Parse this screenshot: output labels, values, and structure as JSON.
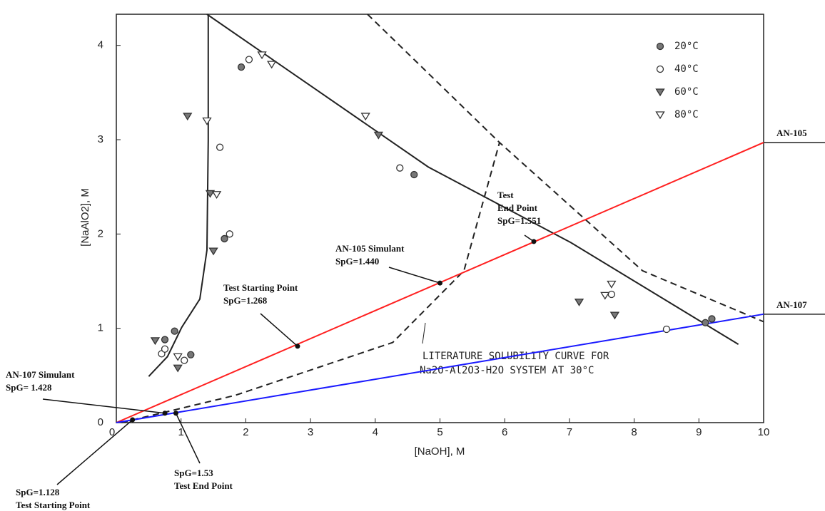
{
  "chart_data": {
    "type": "scatter",
    "x_label": "[NaOH], M",
    "y_label": "[NaAlO2], M",
    "xlim": [
      0,
      10
    ],
    "ylim": [
      0,
      4.33
    ],
    "xticks": [
      0,
      1,
      2,
      3,
      4,
      5,
      6,
      7,
      8,
      9,
      10
    ],
    "yticks": [
      0,
      1,
      2,
      3,
      4
    ],
    "legend": "upper right",
    "series": [
      {
        "name": "20°C",
        "marker": "circle",
        "filled": true,
        "color": "#777",
        "x": [
          1.93,
          1.67,
          0.9,
          0.75,
          1.15,
          4.6,
          9.1,
          9.2
        ],
        "y": [
          3.77,
          1.95,
          0.97,
          0.88,
          0.72,
          2.63,
          1.06,
          1.1
        ]
      },
      {
        "name": "40°C",
        "marker": "circle",
        "filled": false,
        "color": "#333",
        "x": [
          2.05,
          1.6,
          1.75,
          0.7,
          0.75,
          1.05,
          4.38,
          7.65,
          8.5
        ],
        "y": [
          3.85,
          2.92,
          2.0,
          0.73,
          0.78,
          0.66,
          2.7,
          1.36,
          0.99
        ]
      },
      {
        "name": "60°C",
        "marker": "triangle",
        "filled": true,
        "color": "#777",
        "x": [
          1.1,
          1.45,
          1.5,
          0.6,
          0.95,
          4.05,
          7.15,
          7.7
        ],
        "y": [
          3.25,
          2.43,
          1.82,
          0.87,
          0.58,
          3.05,
          1.28,
          1.14
        ]
      },
      {
        "name": "80°C",
        "marker": "triangle",
        "filled": false,
        "color": "#333",
        "x": [
          2.25,
          2.4,
          1.4,
          1.55,
          0.95,
          3.85,
          7.55,
          7.65
        ],
        "y": [
          3.9,
          3.8,
          3.2,
          2.42,
          0.7,
          3.25,
          1.35,
          1.47
        ]
      }
    ],
    "lines": [
      {
        "name": "AN-105",
        "color": "#ff2020",
        "x": [
          0,
          10
        ],
        "y": [
          0,
          2.97
        ]
      },
      {
        "name": "AN-107",
        "color": "#1a1aff",
        "x": [
          0,
          10
        ],
        "y": [
          0,
          1.15
        ]
      }
    ],
    "curves": [
      {
        "dashed": false,
        "x": [
          0.5,
          0.79,
          1.01,
          1.29,
          1.4,
          1.42,
          1.42
        ],
        "y": [
          0.49,
          0.7,
          1.01,
          1.31,
          1.83,
          2.99,
          4.33
        ]
      },
      {
        "dashed": false,
        "x": [
          1.4,
          4.82,
          7.02,
          9.61
        ],
        "y": [
          4.33,
          2.71,
          1.91,
          0.83
        ]
      },
      {
        "dashed": true,
        "x": [
          3.88,
          5.92,
          8.13,
          10
        ],
        "y": [
          4.33,
          2.97,
          1.61,
          1.07
        ]
      },
      {
        "dashed": true,
        "x": [
          0.08,
          1.84,
          4.27,
          5.37,
          5.92
        ],
        "y": [
          0,
          0.29,
          0.85,
          1.61,
          2.97
        ]
      }
    ],
    "annotations": [
      {
        "text": [
          "Test Starting Point",
          "SpG=1.268"
        ],
        "x": 2.8,
        "y": 0.81
      },
      {
        "text": [
          "AN-105 Simulant",
          "SpG=1.440"
        ],
        "x": 5.0,
        "y": 1.48
      },
      {
        "text": [
          "Test",
          "End Point",
          "SpG=1.551"
        ],
        "x": 6.45,
        "y": 1.92
      },
      {
        "text": [
          "AN-107 Simulant",
          "SpG= 1.428"
        ],
        "x": 0.75,
        "y": 0.1
      },
      {
        "text": [
          "SpG=1.53",
          "Test End Point"
        ],
        "x": 0.92,
        "y": 0.1
      },
      {
        "text": [
          "SpG=1.128",
          "Test Starting Point"
        ],
        "x": 0.25,
        "y": 0.03
      }
    ],
    "curve_label": [
      "LITERATURE SOLUBILITY CURVE FOR",
      "Na2O-Al2O3-H2O SYSTEM AT 30°C"
    ]
  }
}
